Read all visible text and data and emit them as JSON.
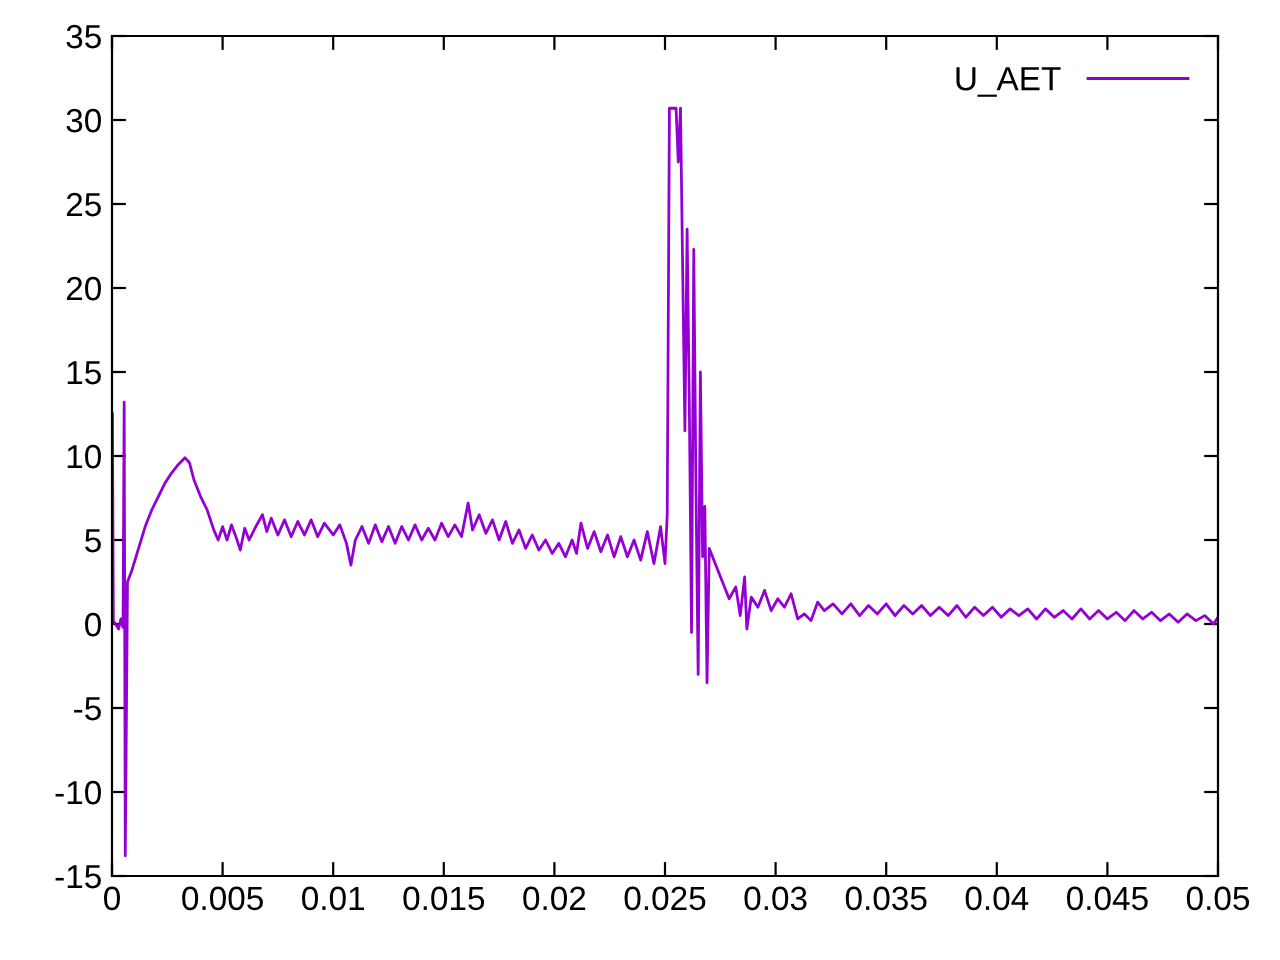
{
  "chart_data": {
    "type": "line",
    "xlim": [
      0,
      0.05
    ],
    "ylim": [
      -15,
      35
    ],
    "xticks": [
      0,
      0.005,
      0.01,
      0.015,
      0.02,
      0.025,
      0.03,
      0.035,
      0.04,
      0.045,
      0.05
    ],
    "yticks": [
      -15,
      -10,
      -5,
      0,
      5,
      10,
      15,
      20,
      25,
      30,
      35
    ],
    "grid": false,
    "legend": "top right",
    "marker": "none",
    "line_style": "solid",
    "series": [
      {
        "name": "U_AET",
        "color": "#9400d3",
        "x": [
          2e-05,
          6e-05,
          0.0003,
          0.0004,
          0.0005,
          0.00055,
          0.0006,
          0.0007,
          0.0009,
          0.0012,
          0.0015,
          0.0018,
          0.0021,
          0.0024,
          0.0027,
          0.003,
          0.0033,
          0.0035,
          0.0037,
          0.004,
          0.0043,
          0.0046,
          0.0048,
          0.005,
          0.0052,
          0.0054,
          0.0056,
          0.0058,
          0.006,
          0.0062,
          0.0065,
          0.0068,
          0.007,
          0.0072,
          0.0075,
          0.0078,
          0.0081,
          0.0084,
          0.0087,
          0.009,
          0.0093,
          0.0096,
          0.01,
          0.0103,
          0.0106,
          0.0108,
          0.011,
          0.0113,
          0.0116,
          0.0119,
          0.0122,
          0.0125,
          0.0128,
          0.0131,
          0.0134,
          0.0137,
          0.014,
          0.0143,
          0.0146,
          0.0149,
          0.0152,
          0.0155,
          0.0158,
          0.0161,
          0.0163,
          0.0166,
          0.0169,
          0.0172,
          0.0175,
          0.0178,
          0.0181,
          0.0184,
          0.0187,
          0.019,
          0.0193,
          0.0196,
          0.0199,
          0.0202,
          0.0205,
          0.0208,
          0.021,
          0.0212,
          0.0215,
          0.0218,
          0.0221,
          0.0224,
          0.0227,
          0.023,
          0.0233,
          0.0236,
          0.0239,
          0.0242,
          0.0245,
          0.0248,
          0.025,
          0.0251,
          0.0252,
          0.0255,
          0.0256,
          0.0257,
          0.0258,
          0.0259,
          0.026,
          0.0261,
          0.0262,
          0.0263,
          0.0264,
          0.0265,
          0.0266,
          0.0267,
          0.0268,
          0.0269,
          0.027,
          0.0273,
          0.0276,
          0.0279,
          0.0282,
          0.0284,
          0.0286,
          0.0287,
          0.0289,
          0.0292,
          0.0295,
          0.0298,
          0.0301,
          0.0304,
          0.0307,
          0.031,
          0.0313,
          0.0316,
          0.0319,
          0.0322,
          0.0326,
          0.033,
          0.0334,
          0.0338,
          0.0342,
          0.0346,
          0.035,
          0.0354,
          0.0358,
          0.0362,
          0.0366,
          0.037,
          0.0374,
          0.0378,
          0.0382,
          0.0386,
          0.039,
          0.0394,
          0.0398,
          0.0402,
          0.0406,
          0.041,
          0.0414,
          0.0418,
          0.0422,
          0.0426,
          0.043,
          0.0434,
          0.0438,
          0.0442,
          0.0446,
          0.045,
          0.0454,
          0.0458,
          0.0462,
          0.0466,
          0.047,
          0.0474,
          0.0478,
          0.0482,
          0.0486,
          0.049,
          0.0494,
          0.0498,
          0.05
        ],
        "values": [
          12.5,
          0.2,
          -0.3,
          0.3,
          -0.2,
          13.2,
          -13.8,
          2.5,
          3.2,
          4.5,
          5.8,
          6.8,
          7.6,
          8.4,
          9.0,
          9.5,
          9.9,
          9.6,
          8.6,
          7.6,
          6.8,
          5.6,
          5.0,
          5.8,
          5.0,
          5.9,
          5.2,
          4.4,
          5.7,
          5.0,
          5.8,
          6.5,
          5.5,
          6.3,
          5.3,
          6.2,
          5.2,
          6.1,
          5.3,
          6.2,
          5.2,
          6.0,
          5.3,
          5.9,
          4.8,
          3.5,
          5.0,
          5.8,
          4.8,
          5.9,
          4.9,
          5.8,
          4.8,
          5.8,
          5.0,
          5.9,
          5.0,
          5.7,
          5.0,
          6.0,
          5.2,
          5.9,
          5.2,
          7.2,
          5.6,
          6.5,
          5.4,
          6.2,
          5.0,
          6.1,
          4.8,
          5.6,
          4.5,
          5.3,
          4.4,
          5.0,
          4.2,
          4.8,
          4.0,
          5.0,
          4.2,
          6.0,
          4.5,
          5.5,
          4.3,
          5.3,
          4.0,
          5.2,
          4.0,
          5.0,
          3.8,
          5.5,
          3.6,
          5.8,
          3.6,
          6.5,
          30.7,
          30.7,
          27.5,
          30.7,
          21.0,
          11.5,
          23.5,
          13.0,
          -0.5,
          22.3,
          8.0,
          -3.0,
          15.0,
          4.0,
          7.0,
          -3.5,
          4.5,
          3.5,
          2.5,
          1.5,
          2.2,
          0.5,
          2.8,
          -0.3,
          1.6,
          1.0,
          2.0,
          0.8,
          1.5,
          1.0,
          1.8,
          0.3,
          0.6,
          0.2,
          1.3,
          0.8,
          1.2,
          0.6,
          1.2,
          0.5,
          1.1,
          0.6,
          1.2,
          0.5,
          1.1,
          0.6,
          1.1,
          0.5,
          1.0,
          0.5,
          1.1,
          0.4,
          1.0,
          0.5,
          1.0,
          0.4,
          0.9,
          0.5,
          0.9,
          0.3,
          0.9,
          0.4,
          0.8,
          0.3,
          0.9,
          0.3,
          0.8,
          0.3,
          0.7,
          0.2,
          0.8,
          0.3,
          0.7,
          0.2,
          0.6,
          0.1,
          0.6,
          0.2,
          0.5,
          0.0,
          0.4
        ]
      }
    ]
  }
}
